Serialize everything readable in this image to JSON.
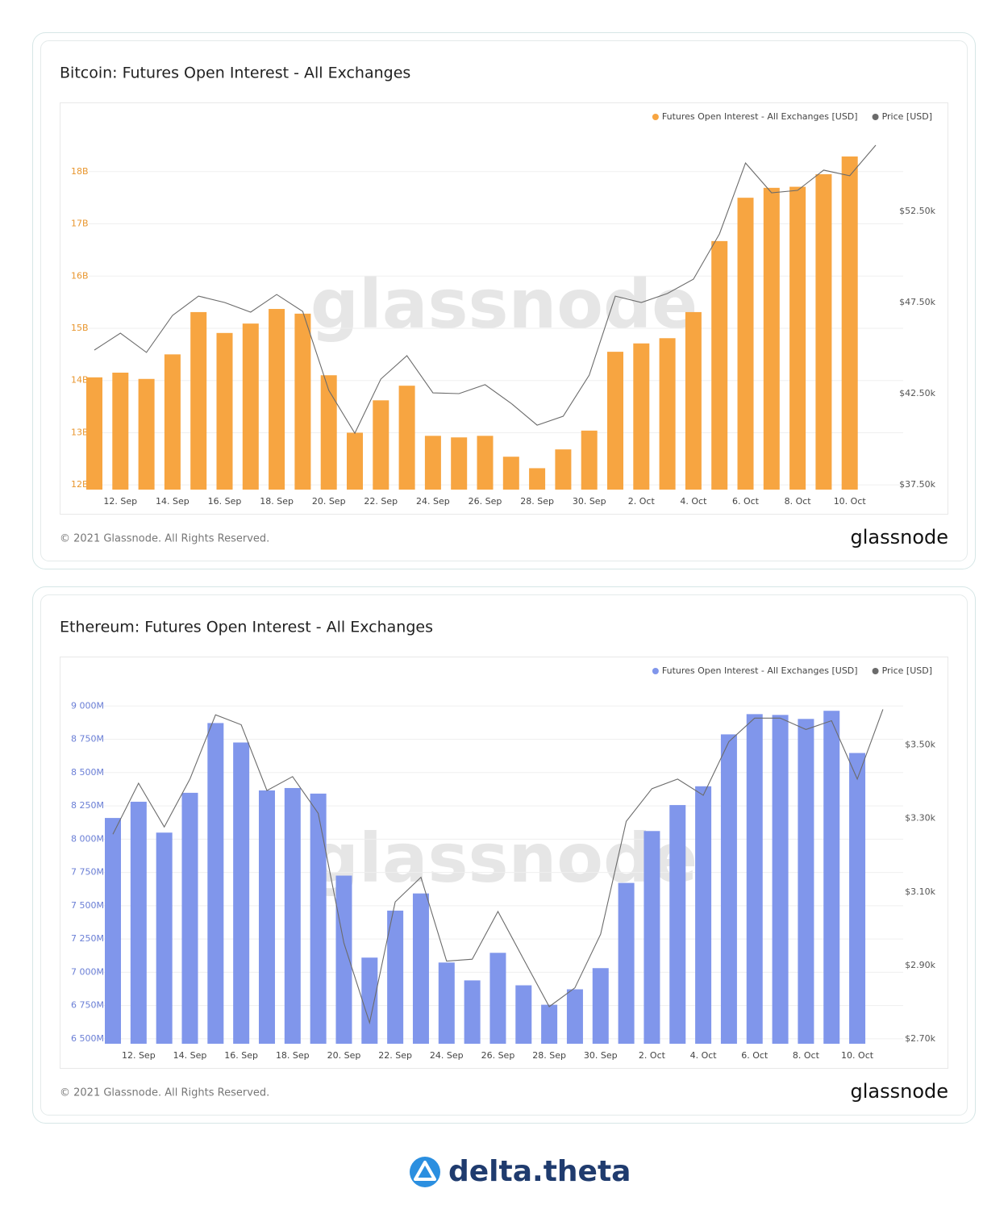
{
  "chart_data": [
    {
      "type": "bar",
      "title": "Bitcoin: Futures Open Interest - All Exchanges",
      "categories": [
        null,
        "12. Sep",
        null,
        "14. Sep",
        null,
        "16. Sep",
        null,
        "18. Sep",
        null,
        "20. Sep",
        null,
        "22. Sep",
        null,
        "24. Sep",
        null,
        "26. Sep",
        null,
        "28. Sep",
        null,
        "30. Sep",
        null,
        "2. Oct",
        null,
        "4. Oct",
        null,
        "6. Oct",
        null,
        "8. Oct",
        null,
        "10. Oct",
        null
      ],
      "series": [
        {
          "name": "Futures Open Interest - All Exchanges [USD]",
          "color": "#f7a541",
          "values": [
            14.06,
            14.15,
            14.03,
            14.5,
            15.31,
            14.91,
            15.09,
            15.37,
            15.28,
            14.1,
            13.0,
            13.62,
            13.9,
            12.94,
            12.91,
            12.94,
            12.54,
            12.32,
            12.68,
            13.04,
            14.55,
            14.71,
            14.81,
            15.31,
            16.67,
            17.5,
            17.69,
            17.71,
            17.95,
            18.29,
            null
          ]
        },
        {
          "name": "Price [USD]",
          "color": "#6b6b6b",
          "type": "line",
          "axis": "y2",
          "values": [
            44890,
            45820,
            44760,
            46790,
            47850,
            47500,
            46970,
            47940,
            47010,
            42680,
            40330,
            43300,
            44580,
            42540,
            42500,
            42990,
            41970,
            40770,
            41260,
            43520,
            47850,
            47500,
            47990,
            48780,
            51260,
            55150,
            53520,
            53650,
            54760,
            54450,
            56130
          ]
        }
      ],
      "ylim": [
        11.91,
        18.97
      ],
      "yticks": [
        {
          "value": 12,
          "label": "12B"
        },
        {
          "value": 13,
          "label": "13B"
        },
        {
          "value": 14,
          "label": "14B"
        },
        {
          "value": 15,
          "label": "15B"
        },
        {
          "value": 16,
          "label": "16B"
        },
        {
          "value": 17,
          "label": "17B"
        },
        {
          "value": 18,
          "label": "18B"
        }
      ],
      "y2lim": [
        37235,
        57456
      ],
      "y2ticks": [
        {
          "value": 37500,
          "label": "$37.50k"
        },
        {
          "value": 42500,
          "label": "$42.50k"
        },
        {
          "value": 47500,
          "label": "$47.50k"
        },
        {
          "value": 52500,
          "label": "$52.50k"
        }
      ],
      "grid": true,
      "legend": "top-right",
      "watermark": "glassnode",
      "footer": "© 2021 Glassnode. All Rights Reserved.",
      "brand": "glassnode"
    },
    {
      "type": "bar",
      "title": "Ethereum: Futures Open Interest - All Exchanges",
      "categories": [
        null,
        "12. Sep",
        null,
        "14. Sep",
        null,
        "16. Sep",
        null,
        "18. Sep",
        null,
        "20. Sep",
        null,
        "22. Sep",
        null,
        "24. Sep",
        null,
        "26. Sep",
        null,
        "28. Sep",
        null,
        "30. Sep",
        null,
        "2. Oct",
        null,
        "4. Oct",
        null,
        "6. Oct",
        null,
        "8. Oct",
        null,
        "10. Oct",
        null
      ],
      "series": [
        {
          "name": "Futures Open Interest - All Exchanges [USD]",
          "color": "#8096eb",
          "values": [
            8159,
            8281,
            8049,
            8348,
            8872,
            8726,
            8366,
            8384,
            8342,
            7726,
            7110,
            7463,
            7592,
            7073,
            6939,
            7146,
            6902,
            6756,
            6872,
            7031,
            7671,
            8061,
            8256,
            8397,
            8787,
            8939,
            8933,
            8903,
            8964,
            8647,
            null
          ]
        },
        {
          "name": "Price [USD]",
          "color": "#6b6b6b",
          "type": "line",
          "axis": "y2",
          "values": [
            3257,
            3396,
            3277,
            3407,
            3582,
            3555,
            3376,
            3414,
            3314,
            2961,
            2744,
            3073,
            3140,
            2912,
            2917,
            3047,
            2917,
            2788,
            2839,
            2985,
            3292,
            3381,
            3407,
            3363,
            3509,
            3573,
            3573,
            3542,
            3566,
            3407,
            3597
          ]
        }
      ],
      "ylim": [
        6463,
        9232
      ],
      "yticks": [
        {
          "value": 6500,
          "label": "6 500M"
        },
        {
          "value": 6750,
          "label": "6 750M"
        },
        {
          "value": 7000,
          "label": "7 000M"
        },
        {
          "value": 7250,
          "label": "7 250M"
        },
        {
          "value": 7500,
          "label": "7 500M"
        },
        {
          "value": 7750,
          "label": "7 750M"
        },
        {
          "value": 8000,
          "label": "8 000M"
        },
        {
          "value": 8250,
          "label": "8 250M"
        },
        {
          "value": 8500,
          "label": "8 500M"
        },
        {
          "value": 8750,
          "label": "8 750M"
        },
        {
          "value": 9000,
          "label": "9 000M"
        }
      ],
      "y2lim": [
        2687,
        3690
      ],
      "y2ticks": [
        {
          "value": 2700,
          "label": "$2.70k"
        },
        {
          "value": 2900,
          "label": "$2.90k"
        },
        {
          "value": 3100,
          "label": "$3.10k"
        },
        {
          "value": 3300,
          "label": "$3.30k"
        },
        {
          "value": 3500,
          "label": "$3.50k"
        }
      ],
      "grid": true,
      "legend": "top-right",
      "watermark": "glassnode",
      "footer": "© 2021 Glassnode. All Rights Reserved.",
      "brand": "glassnode"
    }
  ],
  "footer_brand": "delta.theta"
}
